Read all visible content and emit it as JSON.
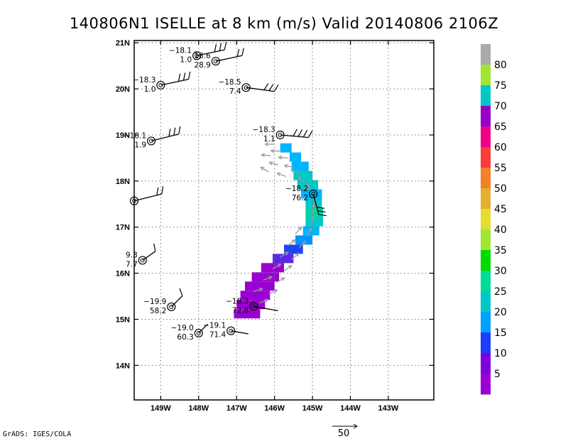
{
  "chart_data": {
    "type": "scatter",
    "title": "140806N1  ISELLE at 8 km (m/s) Valid 20140806  2106Z",
    "xlim": [
      -149.7,
      -141.8
    ],
    "ylim": [
      13.25,
      21.05
    ],
    "x_ticks": [
      -149,
      -148,
      -147,
      -146,
      -145,
      -144,
      -143
    ],
    "x_tick_labels": [
      "149W",
      "148W",
      "147W",
      "146W",
      "145W",
      "144W",
      "143W"
    ],
    "y_ticks": [
      14,
      15,
      16,
      17,
      18,
      19,
      20,
      21
    ],
    "y_tick_labels": [
      "14N",
      "15N",
      "16N",
      "17N",
      "18N",
      "19N",
      "20N",
      "21N"
    ],
    "grid": true,
    "colorbar": {
      "colors": [
        "#9a00d2",
        "#7e00dc",
        "#1e3cff",
        "#00a0ff",
        "#00c8c8",
        "#00dc96",
        "#00dc00",
        "#a0e632",
        "#e6dc32",
        "#e6af2d",
        "#f08228",
        "#fa3c3c",
        "#f00082",
        "#9600c8",
        "#00c8c8",
        "#a0e632",
        "#aaaaaa"
      ],
      "labels": [
        "5",
        "10",
        "15",
        "20",
        "25",
        "30",
        "35",
        "40",
        "45",
        "50",
        "55",
        "60",
        "65",
        "70",
        "75",
        "80"
      ]
    },
    "stations": [
      {
        "lon": -148.05,
        "lat": 20.72,
        "temp": "−18.1",
        "speed": "1.0"
      },
      {
        "lon": -147.55,
        "lat": 20.6,
        "temp": "18.6",
        "speed": "28.9"
      },
      {
        "lon": -149.0,
        "lat": 20.08,
        "temp": "−18.3",
        "speed": "1.0"
      },
      {
        "lon": -146.75,
        "lat": 20.03,
        "temp": "−18.5",
        "speed": "7.4"
      },
      {
        "lon": -145.85,
        "lat": 19.0,
        "temp": "−18.3",
        "speed": "1.1"
      },
      {
        "lon": -149.25,
        "lat": 18.87,
        "temp": "−18.1",
        "speed": "1.9"
      },
      {
        "lon": -144.98,
        "lat": 17.72,
        "temp": "−18.2",
        "speed": "76.2"
      },
      {
        "lon": -149.7,
        "lat": 17.57,
        "temp": "",
        "speed": ""
      },
      {
        "lon": -149.48,
        "lat": 16.28,
        "temp": "9.3",
        "speed": "7.7"
      },
      {
        "lon": -148.72,
        "lat": 15.27,
        "temp": "−19.9",
        "speed": "58.2"
      },
      {
        "lon": -146.55,
        "lat": 15.28,
        "temp": "−18.3",
        "speed": "72.8"
      },
      {
        "lon": -148.0,
        "lat": 14.7,
        "temp": "−19.0",
        "speed": "60.3"
      },
      {
        "lon": -147.15,
        "lat": 14.75,
        "temp": "−19.1",
        "speed": "71.4"
      }
    ]
  },
  "footer": {
    "credit": "GrADS: IGES/COLA",
    "ref_vector": "50"
  }
}
